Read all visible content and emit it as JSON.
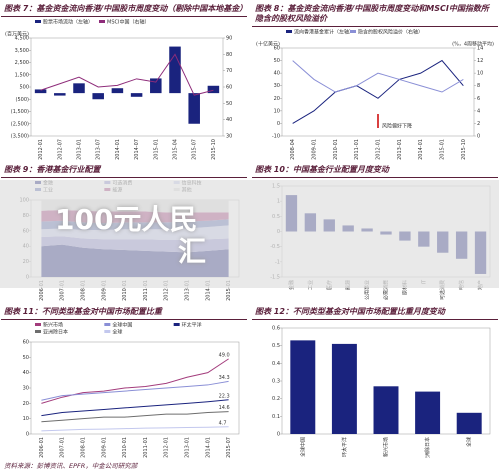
{
  "chart_data": [
    {
      "type": "bar",
      "title": "图表 7：基金资金流向香港/中国股市周度变动（剔除中国本地基金）",
      "ylabel": "(百万美元)",
      "categories": [
        "2012-01",
        "2012-07",
        "2013-01",
        "2013-07",
        "2014-01",
        "2014-07",
        "2015-01",
        "2015-04",
        "2015-07",
        "2015-10"
      ],
      "series": [
        {
          "name": "股票市场流动（左轴）",
          "color": "#1a237e",
          "values": [
            300,
            -200,
            800,
            -500,
            400,
            -300,
            1200,
            3800,
            -2500,
            600
          ]
        },
        {
          "name": "MSCI中国（右轴）",
          "color": "#8e2c7a",
          "axis": "y2",
          "values": [
            58,
            62,
            66,
            60,
            61,
            65,
            63,
            80,
            55,
            58
          ]
        }
      ],
      "ylim": [
        -3500,
        4500
      ],
      "yticks": [
        {
          "value": -3500,
          "label": "(3,500)"
        },
        {
          "value": -2500,
          "label": "(2,500)"
        },
        {
          "value": -1500,
          "label": "(1,500)"
        },
        {
          "value": -500,
          "label": "(500)"
        },
        500,
        {
          "value": 1500,
          "label": "1,500"
        },
        {
          "value": 2500,
          "label": "2,500"
        },
        {
          "value": 3500,
          "label": "3,500"
        },
        {
          "value": 4500,
          "label": "4,500"
        }
      ],
      "y2lim": [
        30,
        90
      ],
      "y2ticks": [
        30,
        40,
        50,
        60,
        70,
        80,
        90
      ],
      "grid": false
    },
    {
      "type": "line",
      "title": "图表 8：基金资金流向香港/中国股市周度变动和MSCI中国指数所隐含的股权风险溢价",
      "ylabel": "(十亿美元)",
      "y2label": "(%，4周移动平均)",
      "categories": [
        "2008-04",
        "2009-01",
        "2010-01",
        "2011-01",
        "2012-01",
        "2013-01",
        "2014-01",
        "2015-01",
        "2015-10"
      ],
      "series": [
        {
          "name": "流向香港基金累计（左轴）",
          "color": "#1a237e",
          "values": [
            0,
            10,
            25,
            30,
            20,
            35,
            40,
            50,
            30
          ]
        },
        {
          "name": "隐含的股权风险溢价（右轴）",
          "color": "#8a8fd6",
          "axis": "y2",
          "values": [
            12,
            9,
            7,
            8,
            10,
            9,
            8,
            7,
            9
          ]
        }
      ],
      "ylim": [
        -10,
        60
      ],
      "yticks": [
        -10,
        0,
        10,
        20,
        30,
        40,
        50,
        60
      ],
      "y2lim": [
        0,
        14
      ],
      "y2ticks": [
        0,
        2,
        4,
        6,
        8,
        10,
        12,
        14
      ],
      "annotation": "风险偏好下降",
      "grid": false
    },
    {
      "type": "area",
      "title": "图表 9：香港基金行业配置",
      "categories": [
        "2006-01",
        "2007-01",
        "2008-01",
        "2009-01",
        "2010-01",
        "2011-01",
        "2012-01",
        "2013-01",
        "2014-01",
        "2015-01"
      ],
      "series": [
        {
          "name": "金融",
          "color": "#1a237e",
          "values": [
            40,
            42,
            38,
            36,
            35,
            34,
            33,
            32,
            34,
            36
          ]
        },
        {
          "name": "可选消费",
          "color": "#8e8ecf",
          "values": [
            12,
            11,
            12,
            13,
            14,
            15,
            15,
            16,
            15,
            14
          ]
        },
        {
          "name": "信息科技",
          "color": "#c3c8ee",
          "values": [
            10,
            10,
            11,
            12,
            13,
            13,
            14,
            15,
            16,
            17
          ]
        },
        {
          "name": "工业",
          "color": "#5a6bb5",
          "values": [
            10,
            10,
            10,
            9,
            9,
            9,
            9,
            9,
            8,
            8
          ]
        },
        {
          "name": "能源",
          "color": "#a33c7c",
          "values": [
            14,
            14,
            15,
            15,
            14,
            14,
            13,
            12,
            11,
            9
          ]
        },
        {
          "name": "其他",
          "color": "#dcdcdc",
          "values": [
            14,
            13,
            14,
            15,
            15,
            15,
            16,
            16,
            16,
            16
          ]
        }
      ],
      "ylim": [
        0,
        100
      ],
      "yticks": [
        0,
        20,
        40,
        60,
        80,
        100
      ],
      "grid": false
    },
    {
      "type": "bar",
      "title": "图表 10：中国基金行业配置月度变动",
      "categories": [
        "金融",
        "工业",
        "医疗",
        "能源",
        "公用事业",
        "必需消费",
        "原材料",
        "IT",
        "可选消费",
        "电信",
        "地产"
      ],
      "values": [
        1.2,
        0.6,
        0.4,
        0.2,
        0.1,
        -0.1,
        -0.3,
        -0.5,
        -0.7,
        -0.9,
        -1.4
      ],
      "color": "#1a237e",
      "ylim": [
        -1.5,
        1.5
      ],
      "yticks": [
        -1.5,
        -1,
        -0.5,
        0,
        0.5,
        1,
        1.5
      ],
      "grid": false
    },
    {
      "type": "line",
      "title": "图表 11：不同类型基金对中国市场配置比重",
      "categories": [
        "2006-01",
        "2007-01",
        "2008-01",
        "2009-01",
        "2010-01",
        "2011-01",
        "2012-01",
        "2013-01",
        "2014-01",
        "2015-07"
      ],
      "series": [
        {
          "name": "新兴市场",
          "color": "#a33c7c",
          "values": [
            20,
            24,
            27,
            28,
            30,
            31,
            33,
            37,
            40,
            49
          ],
          "value_labels": [
            null,
            null,
            null,
            null,
            null,
            null,
            null,
            null,
            null,
            "49.0"
          ]
        },
        {
          "name": "全球中国",
          "color": "#8a8fd6",
          "values": [
            22,
            25,
            26,
            27,
            28,
            29,
            30,
            31,
            32,
            34.3
          ]
        },
        {
          "name": "环太平洋",
          "color": "#1a237e",
          "values": [
            12,
            14,
            15,
            16,
            17,
            18,
            19,
            20,
            21,
            22.3
          ]
        },
        {
          "name": "亚洲除日本",
          "color": "#6d6d6d",
          "values": [
            8,
            9,
            10,
            11,
            11,
            12,
            13,
            13,
            14,
            14.6
          ]
        },
        {
          "name": "全球",
          "color": "#c3c8ee",
          "values": [
            2,
            2.5,
            3,
            3.2,
            3.5,
            3.8,
            4,
            4.2,
            4.4,
            4.7
          ]
        }
      ],
      "ylim": [
        0,
        60
      ],
      "yticks": [
        0,
        10,
        20,
        30,
        40,
        50,
        60
      ],
      "grid": false
    },
    {
      "type": "bar",
      "title": "图表 12：不同类型基金对中国市场配置比重月度变动",
      "categories": [
        "全球中国",
        "环太平洋",
        "新兴市场",
        "亚洲除日本",
        "全球"
      ],
      "values": [
        0.53,
        0.51,
        0.27,
        0.24,
        0.12
      ],
      "color": "#1a237e",
      "ylim": [
        0,
        0.6
      ],
      "yticks": [
        0,
        0.1,
        0.2,
        0.3,
        0.4,
        0.5,
        0.6
      ],
      "grid": false
    }
  ],
  "source": "资料来源：彭博资讯、EPFR，中金公司研究部",
  "overlay": [
    "100元人民",
    "汇"
  ]
}
